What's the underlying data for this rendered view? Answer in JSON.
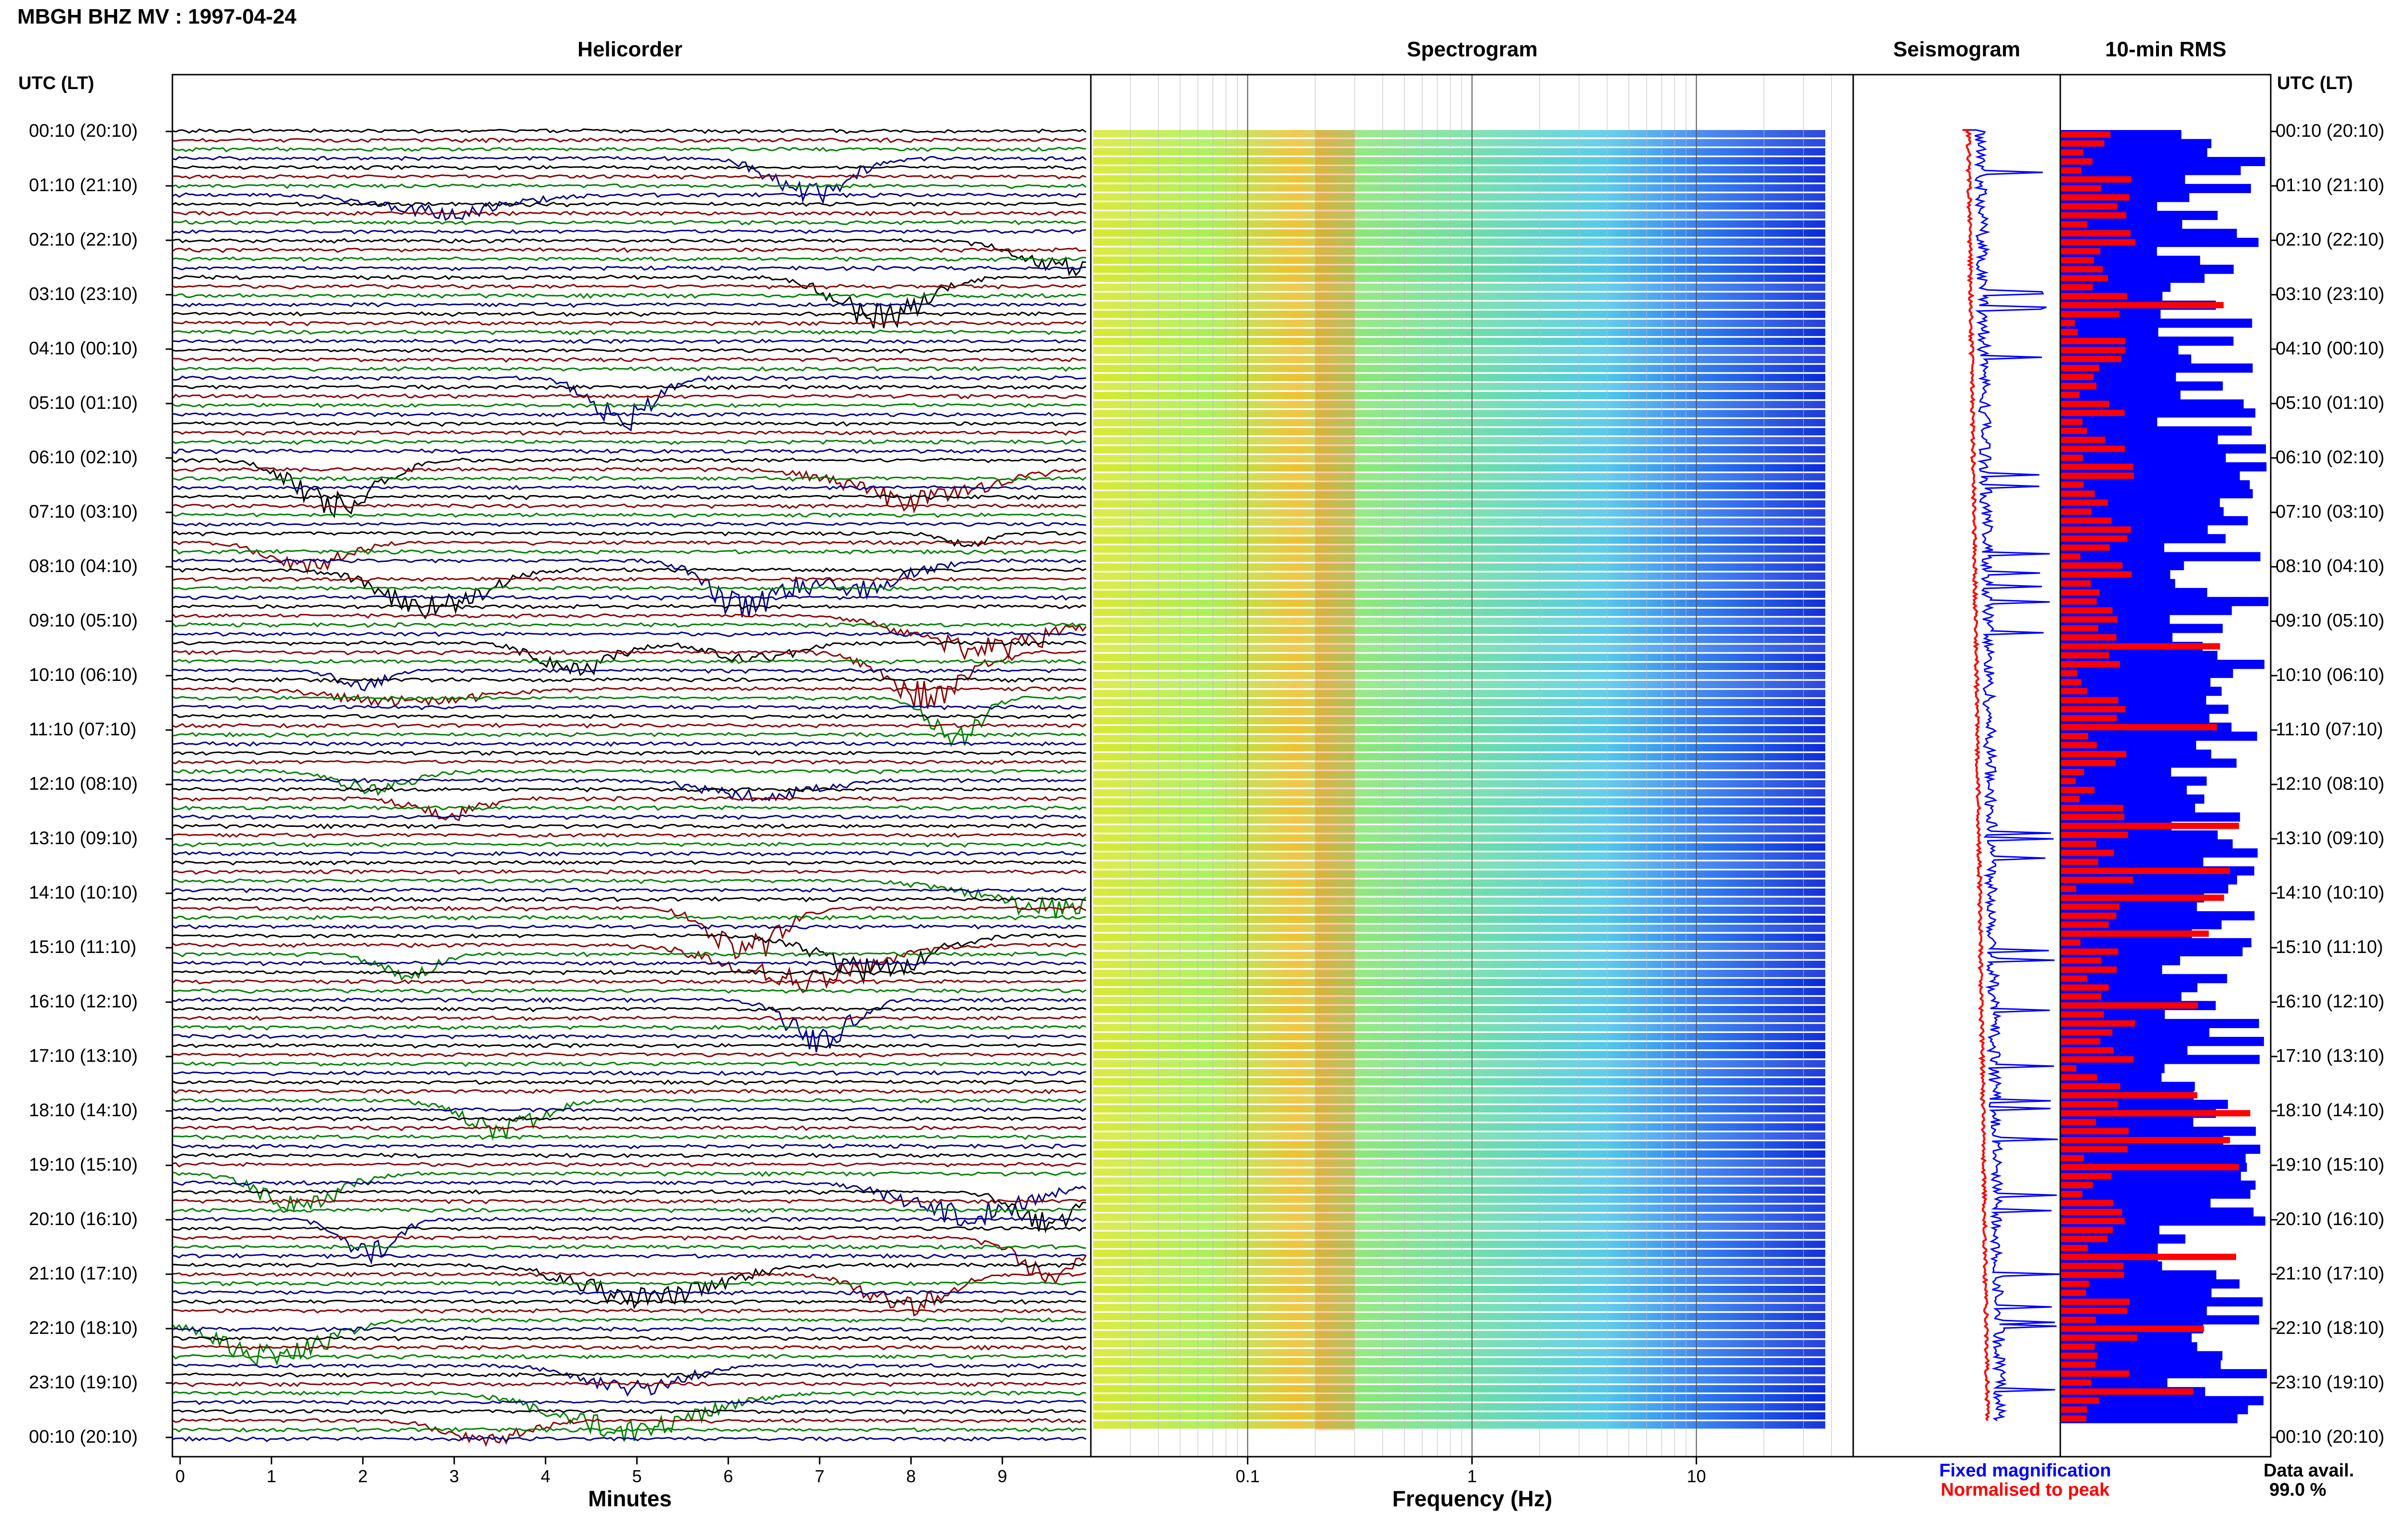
{
  "header": {
    "title": "MBGH BHZ MV : 1997-04-24"
  },
  "panels": {
    "helicorder": "Helicorder",
    "spectrogram": "Spectrogram",
    "seismogram": "Seismogram",
    "rms": "10-min RMS"
  },
  "axes": {
    "time_header": "UTC (LT)",
    "helicorder_xlabel": "Minutes",
    "spectrogram_xlabel": "Frequency (Hz)"
  },
  "legend": {
    "fixed": "Fixed magnification",
    "normalised": "Normalised to peak",
    "avail_label": "Data avail.",
    "avail_value": "99.0 %"
  },
  "colors": {
    "blue": "#0000ff",
    "red": "#ff0000",
    "trace_black": "#000000",
    "trace_red": "#8b0000",
    "trace_green": "#008000",
    "trace_blue": "#00008b"
  },
  "chart_data": {
    "type": "heatmap",
    "title": "MBGH BHZ MV : 1997-04-24",
    "time_labels": [
      "00:10 (20:10)",
      "01:10 (21:10)",
      "02:10 (22:10)",
      "03:10 (23:10)",
      "04:10 (00:10)",
      "05:10 (01:10)",
      "06:10 (02:10)",
      "07:10 (03:10)",
      "08:10 (04:10)",
      "09:10 (05:10)",
      "10:10 (06:10)",
      "11:10 (07:10)",
      "12:10 (08:10)",
      "13:10 (09:10)",
      "14:10 (10:10)",
      "15:10 (11:10)",
      "16:10 (12:10)",
      "17:10 (13:10)",
      "18:10 (14:10)",
      "19:10 (15:10)",
      "20:10 (16:10)",
      "21:10 (17:10)",
      "22:10 (18:10)",
      "23:10 (19:10)",
      "00:10 (20:10)"
    ],
    "helicorder": {
      "xlabel": "Minutes",
      "xticks": [
        "0",
        "1",
        "2",
        "3",
        "4",
        "5",
        "6",
        "7",
        "8",
        "9"
      ],
      "xlim": [
        0,
        10
      ],
      "trace_colors": [
        "#000000",
        "#8b0000",
        "#008000",
        "#00008b"
      ],
      "rows": 144
    },
    "spectrogram": {
      "xlabel": "Frequency (Hz)",
      "xscale": "log",
      "xlim": [
        0.02,
        50
      ],
      "xticks": [
        "0.1",
        "1",
        "10"
      ],
      "peak_band_hz": [
        0.2,
        0.3
      ],
      "rows": 144
    },
    "seismogram": {
      "series": [
        {
          "name": "Fixed magnification",
          "color": "#0000ff"
        },
        {
          "name": "Normalised to peak",
          "color": "#ff0000"
        }
      ]
    },
    "rms": {
      "bins": 144,
      "series": [
        {
          "name": "Fixed magnification",
          "color": "#0000ff"
        },
        {
          "name": "Normalised to peak",
          "color": "#ff0000"
        }
      ]
    },
    "data_availability_percent": 99.0
  }
}
